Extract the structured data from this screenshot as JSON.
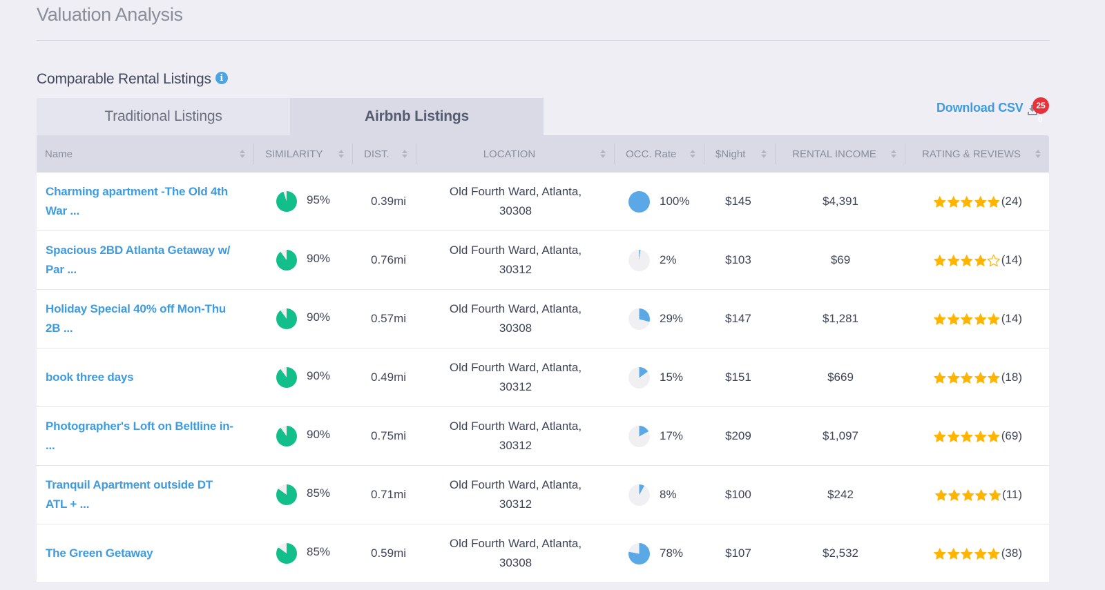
{
  "page": {
    "title": "Valuation Analysis"
  },
  "section": {
    "title": "Comparable Rental Listings",
    "info_icon": "info-circle-icon"
  },
  "tabs": [
    {
      "label": "Traditional Listings",
      "active": false
    },
    {
      "label": "Airbnb Listings",
      "active": true
    }
  ],
  "download": {
    "label": "Download CSV",
    "icon": "download-icon",
    "badge": "25",
    "badge_sub": "0",
    "badge_color": "#e8313a"
  },
  "colors": {
    "accent": "#3f9be0",
    "similarity_pie": "#12bf8a",
    "occupancy_pie": "#5aa9e6",
    "pie_empty": "#f0f0f3",
    "star": "#ffb400"
  },
  "table": {
    "columns": [
      {
        "key": "name",
        "label": "Name"
      },
      {
        "key": "similarity",
        "label": "SIMILARITY"
      },
      {
        "key": "dist",
        "label": "DIST."
      },
      {
        "key": "location",
        "label": "LOCATION"
      },
      {
        "key": "occ",
        "label": "OCC. Rate"
      },
      {
        "key": "night",
        "label": "$Night"
      },
      {
        "key": "income",
        "label": "RENTAL INCOME"
      },
      {
        "key": "rating",
        "label": "RATING & REVIEWS"
      }
    ],
    "rows": [
      {
        "name_line1": "Charming apartment -The Old 4th",
        "name_line2": "War ...",
        "similarity": "95%",
        "similarity_pct": 95,
        "dist": "0.39mi",
        "loc_line1": "Old Fourth Ward, Atlanta,",
        "loc_line2": "30308",
        "occ": "100%",
        "occ_pct": 100,
        "night": "$145",
        "income": "$4,391",
        "stars": 5,
        "reviews": "(24)"
      },
      {
        "name_line1": "Spacious 2BD Atlanta Getaway w/",
        "name_line2": "Par ...",
        "similarity": "90%",
        "similarity_pct": 90,
        "dist": "0.76mi",
        "loc_line1": "Old Fourth Ward, Atlanta,",
        "loc_line2": "30312",
        "occ": "2%",
        "occ_pct": 2,
        "night": "$103",
        "income": "$69",
        "stars": 4,
        "reviews": "(14)"
      },
      {
        "name_line1": "Holiday Special 40% off Mon-Thu",
        "name_line2": "2B ...",
        "similarity": "90%",
        "similarity_pct": 90,
        "dist": "0.57mi",
        "loc_line1": "Old Fourth Ward, Atlanta,",
        "loc_line2": "30308",
        "occ": "29%",
        "occ_pct": 29,
        "night": "$147",
        "income": "$1,281",
        "stars": 5,
        "reviews": "(14)"
      },
      {
        "name_line1": "book three days",
        "name_line2": "",
        "similarity": "90%",
        "similarity_pct": 90,
        "dist": "0.49mi",
        "loc_line1": "Old Fourth Ward, Atlanta,",
        "loc_line2": "30312",
        "occ": "15%",
        "occ_pct": 15,
        "night": "$151",
        "income": "$669",
        "stars": 5,
        "reviews": "(18)"
      },
      {
        "name_line1": "Photographer's Loft on Beltline in-",
        "name_line2": "...",
        "similarity": "90%",
        "similarity_pct": 90,
        "dist": "0.75mi",
        "loc_line1": "Old Fourth Ward, Atlanta,",
        "loc_line2": "30312",
        "occ": "17%",
        "occ_pct": 17,
        "night": "$209",
        "income": "$1,097",
        "stars": 5,
        "reviews": "(69)"
      },
      {
        "name_line1": "Tranquil Apartment outside DT",
        "name_line2": "ATL + ...",
        "similarity": "85%",
        "similarity_pct": 85,
        "dist": "0.71mi",
        "loc_line1": "Old Fourth Ward, Atlanta,",
        "loc_line2": "30312",
        "occ": "8%",
        "occ_pct": 8,
        "night": "$100",
        "income": "$242",
        "stars": 5,
        "reviews": "(11)"
      },
      {
        "name_line1": "The Green Getaway",
        "name_line2": "",
        "similarity": "85%",
        "similarity_pct": 85,
        "dist": "0.59mi",
        "loc_line1": "Old Fourth Ward, Atlanta,",
        "loc_line2": "30308",
        "occ": "78%",
        "occ_pct": 78,
        "night": "$107",
        "income": "$2,532",
        "stars": 5,
        "reviews": "(38)"
      }
    ]
  }
}
